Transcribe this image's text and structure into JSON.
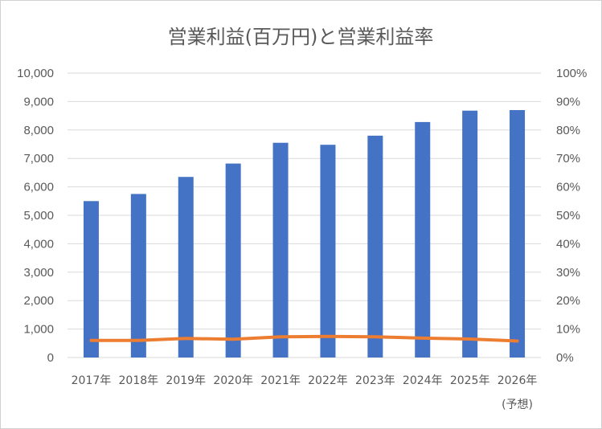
{
  "chart_data": {
    "type": "bar",
    "title": "営業利益(百万円)と営業利益率",
    "categories": [
      "2017年",
      "2018年",
      "2019年",
      "2020年",
      "2021年",
      "2022年",
      "2023年",
      "2024年",
      "2025年",
      "2026年"
    ],
    "category_notes": [
      "",
      "",
      "",
      "",
      "",
      "",
      "",
      "",
      "",
      "(予想)"
    ],
    "series": [
      {
        "type": "bar",
        "axis": "left",
        "values": [
          5500,
          5750,
          6350,
          6820,
          7550,
          7480,
          7800,
          8280,
          8680,
          8700
        ]
      },
      {
        "type": "line",
        "axis": "right",
        "values": [
          6.0,
          6.0,
          6.7,
          6.4,
          7.3,
          7.4,
          7.3,
          6.8,
          6.5,
          5.8
        ]
      }
    ],
    "left_axis": {
      "ylim": [
        0,
        10000
      ],
      "ticks": [
        0,
        1000,
        2000,
        3000,
        4000,
        5000,
        6000,
        7000,
        8000,
        9000,
        10000
      ],
      "tick_labels": [
        "0",
        "1,000",
        "2,000",
        "3,000",
        "4,000",
        "5,000",
        "6,000",
        "7,000",
        "8,000",
        "9,000",
        "10,000"
      ]
    },
    "right_axis": {
      "ylim": [
        0,
        100
      ],
      "ticks": [
        0,
        10,
        20,
        30,
        40,
        50,
        60,
        70,
        80,
        90,
        100
      ],
      "tick_labels": [
        "0%",
        "10%",
        "20%",
        "30%",
        "40%",
        "50%",
        "60%",
        "70%",
        "80%",
        "90%",
        "100%"
      ]
    },
    "grid": true,
    "legend": "none",
    "colors": {
      "bar": "#4472c4",
      "line": "#ed7d31"
    }
  }
}
